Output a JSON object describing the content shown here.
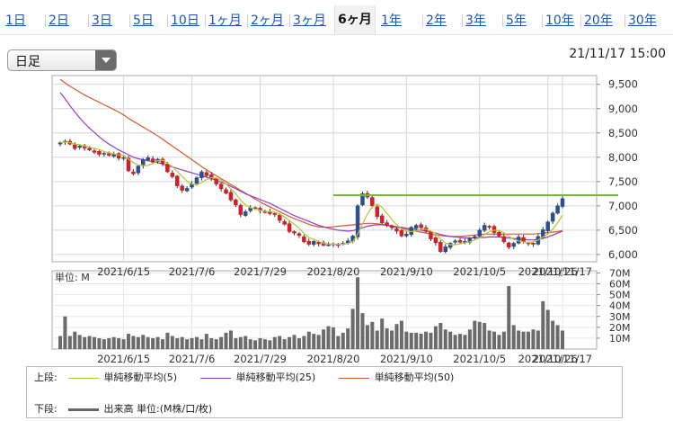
{
  "tabs": [
    {
      "label": "1日",
      "active": false
    },
    {
      "label": "2日",
      "active": false
    },
    {
      "label": "3日",
      "active": false
    },
    {
      "label": "5日",
      "active": false
    },
    {
      "label": "10日",
      "active": false
    },
    {
      "label": "1ヶ月",
      "active": false
    },
    {
      "label": "2ヶ月",
      "active": false
    },
    {
      "label": "3ヶ月",
      "active": false
    },
    {
      "label": "6ヶ月",
      "active": true
    },
    {
      "label": "1年",
      "active": false
    },
    {
      "label": "2年",
      "active": false
    },
    {
      "label": "3年",
      "active": false
    },
    {
      "label": "5年",
      "active": false
    },
    {
      "label": "10年",
      "active": false
    },
    {
      "label": "20年",
      "active": false
    },
    {
      "label": "30年",
      "active": false
    }
  ],
  "select": {
    "value": "日足"
  },
  "timestamp": "21/11/17 15:00",
  "colors": {
    "sma5": "#b6c52e",
    "sma25": "#8e3fc9",
    "sma50": "#d9592f",
    "resistance": "#7ab543",
    "up": "#2d4f8f",
    "down": "#d11f2b",
    "volume": "#6b6b6b",
    "grid": "#d6d6d6"
  },
  "chart_data": {
    "type": "candlestick",
    "price_axis": {
      "ticks": [
        "9,500",
        "9,000",
        "8,500",
        "8,000",
        "7,500",
        "7,000",
        "6,500",
        "6,000"
      ],
      "values": [
        9500,
        9000,
        8500,
        8000,
        7500,
        7000,
        6500,
        6000
      ],
      "ylim": [
        5850,
        9680
      ]
    },
    "volume_axis": {
      "ticks": [
        "70M",
        "60M",
        "50M",
        "40M",
        "30M",
        "20M",
        "10M"
      ],
      "values": [
        70,
        60,
        50,
        40,
        30,
        20,
        10
      ],
      "ylim": [
        0,
        72
      ],
      "label": "単位: M"
    },
    "x_ticks": [
      "2021/6/15",
      "2021/7/6",
      "2021/7/29",
      "2021/8/20",
      "2021/9/10",
      "2021/10/5",
      "2021/10/26",
      "2021/11/17"
    ],
    "resistance_level": 7220,
    "close": [
      8300,
      8330,
      8270,
      8180,
      8230,
      8190,
      8150,
      8100,
      8060,
      8080,
      8040,
      8060,
      7980,
      7990,
      7720,
      7660,
      7820,
      7950,
      7990,
      7900,
      7960,
      7870,
      7700,
      7600,
      7410,
      7320,
      7360,
      7450,
      7580,
      7700,
      7620,
      7550,
      7450,
      7350,
      7260,
      7120,
      7020,
      6820,
      6880,
      6960,
      6960,
      6900,
      6870,
      6840,
      6820,
      6700,
      6620,
      6470,
      6440,
      6390,
      6260,
      6210,
      6270,
      6220,
      6190,
      6200,
      6220,
      6190,
      6230,
      6280,
      6380,
      7000,
      7250,
      7180,
      7000,
      6780,
      6650,
      6600,
      6550,
      6480,
      6380,
      6420,
      6560,
      6600,
      6550,
      6480,
      6320,
      6240,
      6060,
      6160,
      6230,
      6280,
      6250,
      6270,
      6330,
      6370,
      6500,
      6600,
      6560,
      6450,
      6380,
      6260,
      6150,
      6230,
      6360,
      6260,
      6220,
      6210,
      6370,
      6510,
      6670,
      6850,
      7000,
      7150
    ],
    "volume": [
      12,
      30,
      12,
      16,
      13,
      11,
      12,
      11,
      10,
      9,
      10,
      11,
      10,
      9,
      14,
      12,
      11,
      13,
      11,
      10,
      11,
      9,
      15,
      12,
      10,
      11,
      9,
      10,
      11,
      9,
      14,
      10,
      9,
      11,
      15,
      17,
      10,
      11,
      12,
      9,
      8,
      10,
      9,
      8,
      11,
      12,
      9,
      11,
      13,
      10,
      12,
      16,
      14,
      13,
      18,
      21,
      20,
      12,
      15,
      19,
      37,
      66,
      33,
      22,
      25,
      17,
      28,
      19,
      17,
      23,
      26,
      16,
      15,
      15,
      14,
      16,
      15,
      21,
      24,
      18,
      16,
      13,
      14,
      13,
      18,
      26,
      25,
      24,
      17,
      16,
      13,
      16,
      58,
      22,
      17,
      16,
      16,
      18,
      17,
      44,
      36,
      26,
      22,
      17
    ],
    "sma5": [
      8300,
      8315,
      8300,
      8270,
      8260,
      8230,
      8210,
      8180,
      8160,
      8120,
      8090,
      8070,
      8050,
      8040,
      7960,
      7890,
      7840,
      7830,
      7830,
      7870,
      7930,
      7940,
      7880,
      7810,
      7710,
      7610,
      7510,
      7450,
      7430,
      7480,
      7540,
      7580,
      7570,
      7530,
      7450,
      7350,
      7250,
      7120,
      7020,
      6960,
      6930,
      6910,
      6890,
      6880,
      6870,
      6830,
      6770,
      6700,
      6620,
      6540,
      6430,
      6350,
      6310,
      6270,
      6230,
      6220,
      6210,
      6210,
      6210,
      6230,
      6260,
      6420,
      6630,
      6830,
      6980,
      7040,
      6970,
      6850,
      6720,
      6610,
      6530,
      6480,
      6470,
      6490,
      6520,
      6520,
      6480,
      6430,
      6320,
      6240,
      6200,
      6200,
      6220,
      6240,
      6260,
      6300,
      6340,
      6410,
      6470,
      6500,
      6490,
      6450,
      6370,
      6310,
      6280,
      6260,
      6240,
      6260,
      6300,
      6360,
      6420,
      6520,
      6650,
      6810
    ],
    "sma25": [
      9330,
      9200,
      9060,
      8930,
      8810,
      8700,
      8600,
      8510,
      8420,
      8340,
      8270,
      8210,
      8150,
      8100,
      8050,
      8000,
      7970,
      7950,
      7930,
      7910,
      7890,
      7860,
      7830,
      7800,
      7770,
      7740,
      7710,
      7680,
      7650,
      7620,
      7590,
      7560,
      7530,
      7490,
      7450,
      7400,
      7350,
      7300,
      7250,
      7210,
      7170,
      7130,
      7090,
      7050,
      7000,
      6950,
      6900,
      6850,
      6800,
      6760,
      6720,
      6680,
      6640,
      6600,
      6570,
      6540,
      6520,
      6500,
      6490,
      6480,
      6490,
      6520,
      6550,
      6580,
      6600,
      6610,
      6610,
      6600,
      6590,
      6570,
      6560,
      6540,
      6530,
      6510,
      6500,
      6480,
      6460,
      6440,
      6410,
      6390,
      6370,
      6360,
      6350,
      6340,
      6340,
      6340,
      6350,
      6350,
      6360,
      6360,
      6360,
      6350,
      6340,
      6330,
      6320,
      6310,
      6300,
      6300,
      6310,
      6330,
      6360,
      6400,
      6440,
      6480
    ],
    "sma50": [
      9600,
      9530,
      9460,
      9400,
      9340,
      9280,
      9230,
      9180,
      9130,
      9080,
      9030,
      8980,
      8930,
      8870,
      8800,
      8740,
      8680,
      8620,
      8560,
      8500,
      8440,
      8370,
      8300,
      8230,
      8160,
      8090,
      8020,
      7950,
      7880,
      7810,
      7740,
      7680,
      7620,
      7560,
      7500,
      7440,
      7380,
      7320,
      7260,
      7200,
      7140,
      7080,
      7030,
      6980,
      6930,
      6880,
      6830,
      6780,
      6740,
      6700,
      6660,
      6620,
      6590,
      6570,
      6560,
      6560,
      6570,
      6580,
      6590,
      6600,
      6610,
      6620,
      6630,
      6640,
      6640,
      6630,
      6620,
      6600,
      6580,
      6560,
      6540,
      6520,
      6500,
      6480,
      6460,
      6440,
      6420,
      6400,
      6390,
      6380,
      6370,
      6370,
      6370,
      6380,
      6390,
      6400,
      6410,
      6420,
      6420,
      6420,
      6420,
      6420,
      6420,
      6420,
      6420,
      6420,
      6420,
      6420,
      6430,
      6440,
      6450,
      6460,
      6470,
      6490
    ]
  },
  "legend": {
    "upper_label": "上段:",
    "sma5_label": "単純移動平均(5)",
    "sma25_label": "単純移動平均(25)",
    "sma50_label": "単純移動平均(50)",
    "lower_label": "下段:",
    "volume_label": "出来高 単位:(M株/口/枚)"
  }
}
